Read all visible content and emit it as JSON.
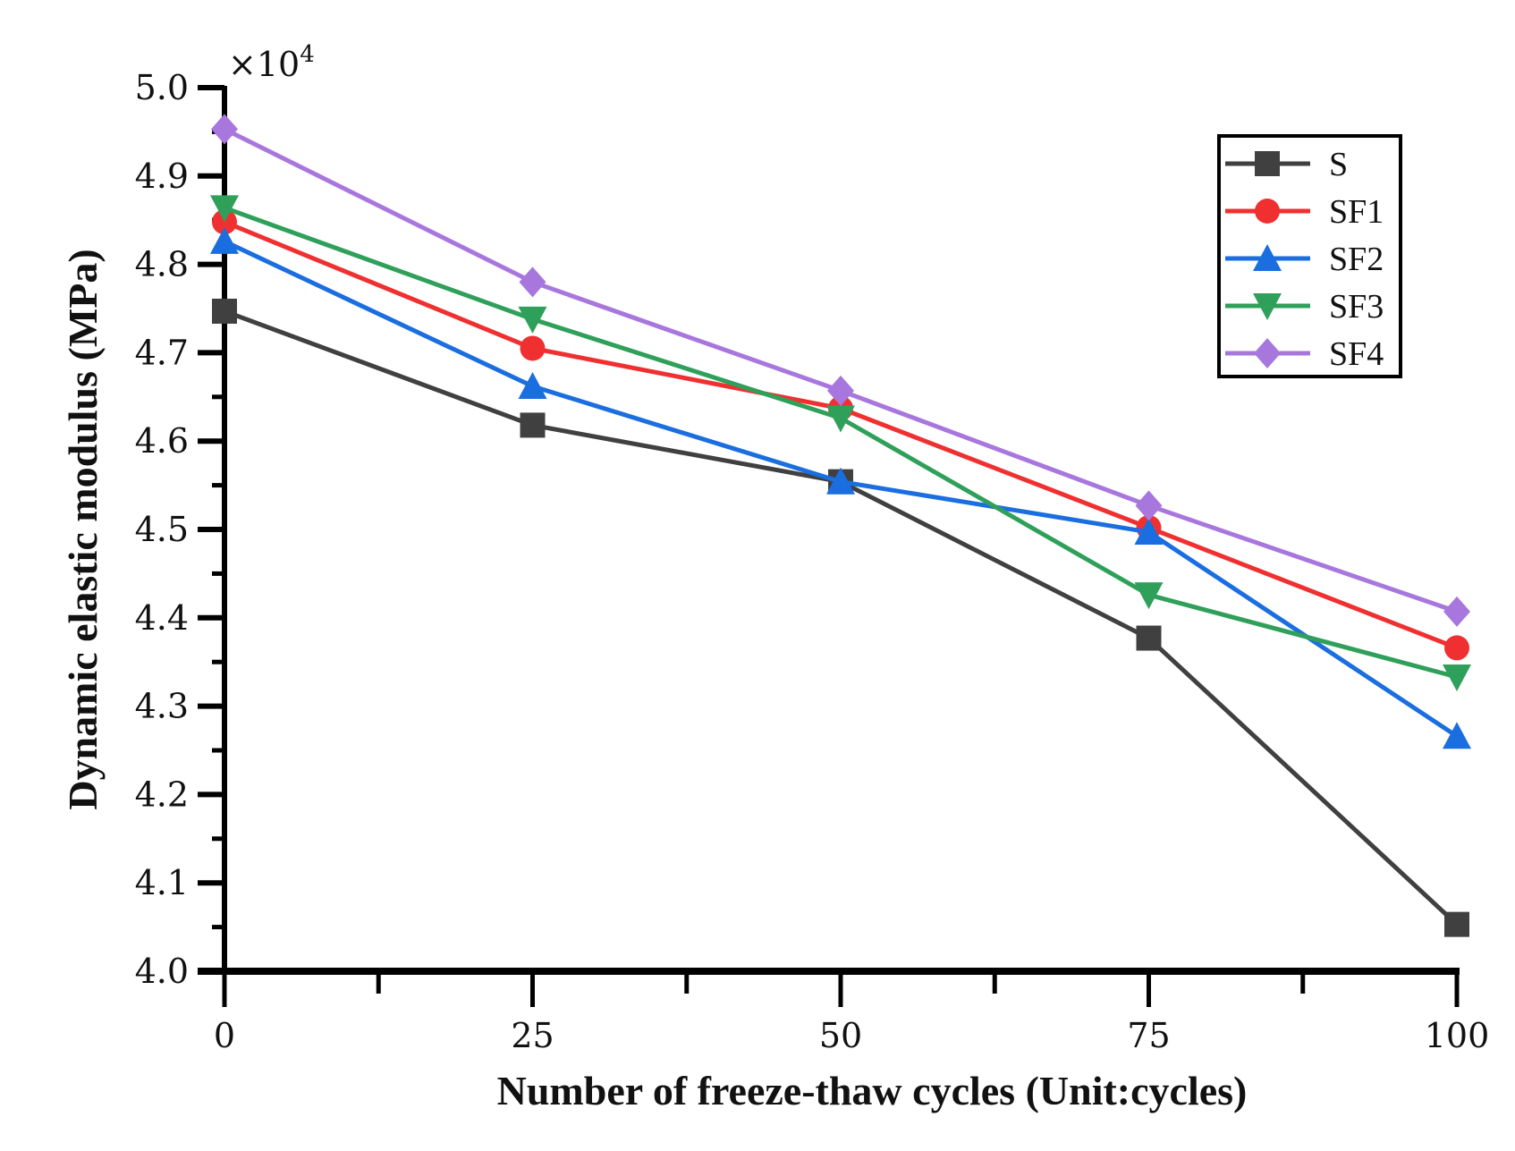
{
  "chart_data": {
    "type": "line",
    "title": "",
    "xlabel": "Number of freeze-thaw cycles (Unit:cycles)",
    "ylabel": "Dynamic elastic modulus (MPa)",
    "y_multiplier": "×10",
    "y_multiplier_exp": "4",
    "x": [
      0,
      25,
      50,
      75,
      100
    ],
    "x_tick_labels": [
      "0",
      "25",
      "50",
      "75",
      "100"
    ],
    "xlim": [
      0,
      100
    ],
    "ylim": [
      4.0,
      5.0
    ],
    "y_tick_labels": [
      "4.0",
      "4.1",
      "4.2",
      "4.3",
      "4.4",
      "4.5",
      "4.6",
      "4.7",
      "4.8",
      "4.9",
      "5.0"
    ],
    "legend_position": "top-right",
    "grid": false,
    "series": [
      {
        "name": "S",
        "color": "#404040",
        "marker": "square",
        "values": [
          4.747,
          4.618,
          4.554,
          4.377,
          4.053
        ]
      },
      {
        "name": "SF1",
        "color": "#f03030",
        "marker": "circle",
        "values": [
          4.848,
          4.705,
          4.637,
          4.502,
          4.366
        ]
      },
      {
        "name": "SF2",
        "color": "#1a6ee0",
        "marker": "triangle-up",
        "values": [
          4.826,
          4.662,
          4.554,
          4.497,
          4.266
        ]
      },
      {
        "name": "SF3",
        "color": "#2fa05a",
        "marker": "triangle-down",
        "values": [
          4.864,
          4.738,
          4.626,
          4.426,
          4.333
        ]
      },
      {
        "name": "SF4",
        "color": "#a877de",
        "marker": "diamond",
        "values": [
          4.953,
          4.78,
          4.657,
          4.527,
          4.407
        ]
      }
    ]
  }
}
